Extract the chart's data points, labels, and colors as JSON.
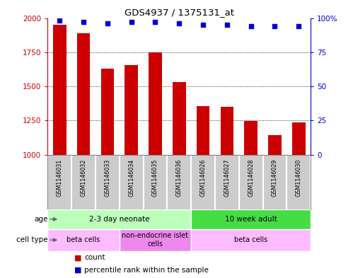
{
  "title": "GDS4937 / 1375131_at",
  "samples": [
    "GSM1146031",
    "GSM1146032",
    "GSM1146033",
    "GSM1146034",
    "GSM1146035",
    "GSM1146036",
    "GSM1146026",
    "GSM1146027",
    "GSM1146028",
    "GSM1146029",
    "GSM1146030"
  ],
  "counts": [
    1950,
    1890,
    1630,
    1655,
    1750,
    1530,
    1355,
    1350,
    1245,
    1145,
    1235
  ],
  "percentiles": [
    98,
    97,
    96,
    97,
    97,
    96,
    95,
    95,
    94,
    94,
    94
  ],
  "bar_color": "#cc0000",
  "dot_color": "#0000cc",
  "ylim_left": [
    1000,
    2000
  ],
  "ylim_right": [
    0,
    100
  ],
  "yticks_left": [
    1000,
    1250,
    1500,
    1750,
    2000
  ],
  "ytick_labels_left": [
    "1000",
    "1250",
    "1500",
    "1750",
    "2000"
  ],
  "yticks_right": [
    0,
    25,
    50,
    75,
    100
  ],
  "ytick_labels_right": [
    "0",
    "25",
    "50",
    "75",
    "100%"
  ],
  "age_groups": [
    {
      "label": "2-3 day neonate",
      "start": 0,
      "end": 6,
      "color": "#bbffbb"
    },
    {
      "label": "10 week adult",
      "start": 6,
      "end": 11,
      "color": "#44dd44"
    }
  ],
  "cell_type_groups": [
    {
      "label": "beta cells",
      "start": 0,
      "end": 3,
      "color": "#ffbbff"
    },
    {
      "label": "non-endocrine islet\ncells",
      "start": 3,
      "end": 6,
      "color": "#ee88ee"
    },
    {
      "label": "beta cells",
      "start": 6,
      "end": 11,
      "color": "#ffbbff"
    }
  ],
  "legend_items": [
    {
      "color": "#cc0000",
      "label": "count"
    },
    {
      "color": "#0000cc",
      "label": "percentile rank within the sample"
    }
  ],
  "bg_color": "#ffffff",
  "sample_box_color": "#cccccc",
  "sample_box_border": "#888888"
}
